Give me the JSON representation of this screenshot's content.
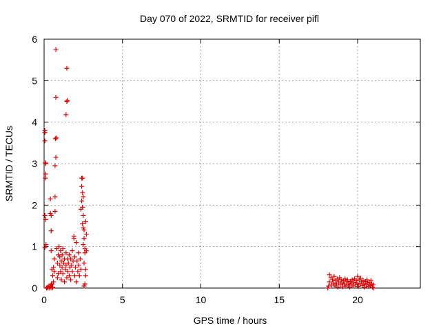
{
  "chart_data": {
    "type": "scatter",
    "title": "Day 070 of 2022, SRMTID for receiver pifl",
    "xlabel": "GPS time / hours",
    "ylabel": "SRMTID / TECUs",
    "xlim": [
      0,
      24
    ],
    "ylim": [
      0,
      6
    ],
    "xticks": [
      0,
      5,
      10,
      15,
      20
    ],
    "yticks": [
      0,
      1,
      2,
      3,
      4,
      5,
      6
    ],
    "grid": true,
    "marker": "plus",
    "color": "#e00000",
    "series": [
      {
        "points": [
          [
            0.05,
            3.8
          ],
          [
            0.05,
            3.75
          ],
          [
            0.05,
            3.55
          ],
          [
            0.1,
            3.0
          ],
          [
            0.08,
            3.02
          ],
          [
            0.1,
            2.75
          ],
          [
            0.08,
            2.65
          ],
          [
            0.05,
            1.75
          ],
          [
            0.1,
            1.65
          ],
          [
            0.12,
            1.05
          ],
          [
            0.05,
            0.98
          ],
          [
            0.15,
            0.0
          ],
          [
            0.2,
            0.02
          ],
          [
            0.25,
            0.0
          ],
          [
            0.3,
            0.05
          ],
          [
            0.35,
            0.0
          ],
          [
            0.4,
            0.03
          ],
          [
            0.45,
            0.08
          ],
          [
            0.5,
            0.0
          ],
          [
            0.5,
            0.1
          ],
          [
            0.55,
            0.02
          ],
          [
            0.4,
            2.15
          ],
          [
            0.4,
            1.8
          ],
          [
            0.45,
            1.75
          ],
          [
            0.45,
            1.38
          ],
          [
            0.45,
            0.9
          ],
          [
            0.5,
            0.45
          ],
          [
            0.55,
            0.3
          ],
          [
            0.6,
            0.15
          ],
          [
            0.6,
            0.5
          ],
          [
            0.65,
            0.7
          ],
          [
            0.65,
            0.4
          ],
          [
            0.7,
            1.85
          ],
          [
            0.7,
            2.95
          ],
          [
            0.7,
            2.2
          ],
          [
            0.75,
            5.75
          ],
          [
            0.75,
            4.6
          ],
          [
            0.72,
            3.6
          ],
          [
            0.78,
            3.62
          ],
          [
            0.75,
            3.15
          ],
          [
            0.8,
            0.95
          ],
          [
            0.85,
            0.6
          ],
          [
            0.85,
            0.25
          ],
          [
            0.9,
            0.35
          ],
          [
            0.9,
            0.8
          ],
          [
            0.95,
            1.0
          ],
          [
            1.0,
            0.55
          ],
          [
            1.0,
            0.75
          ],
          [
            1.05,
            0.4
          ],
          [
            1.05,
            0.9
          ],
          [
            1.1,
            0.65
          ],
          [
            1.1,
            0.2
          ],
          [
            1.15,
            0.5
          ],
          [
            1.15,
            0.8
          ],
          [
            1.2,
            0.95
          ],
          [
            1.2,
            0.35
          ],
          [
            1.25,
            0.6
          ],
          [
            1.3,
            0.7
          ],
          [
            1.3,
            0.15
          ],
          [
            1.35,
            0.45
          ],
          [
            1.4,
            0.85
          ],
          [
            1.4,
            0.55
          ],
          [
            1.45,
            0.25
          ],
          [
            1.45,
            5.3
          ],
          [
            1.45,
            4.5
          ],
          [
            1.48,
            4.52
          ],
          [
            1.4,
            4.18
          ],
          [
            1.5,
            0.7
          ],
          [
            1.5,
            0.4
          ],
          [
            1.55,
            0.6
          ],
          [
            1.6,
            0.8
          ],
          [
            1.6,
            0.3
          ],
          [
            1.65,
            0.5
          ],
          [
            1.7,
            0.7
          ],
          [
            1.7,
            0.2
          ],
          [
            1.75,
            0.55
          ],
          [
            1.8,
            0.9
          ],
          [
            1.8,
            0.4
          ],
          [
            1.85,
            0.65
          ],
          [
            1.9,
            1.2
          ],
          [
            1.9,
            1.25
          ],
          [
            1.95,
            0.75
          ],
          [
            1.95,
            0.3
          ],
          [
            2.0,
            0.5
          ],
          [
            2.05,
            1.1
          ],
          [
            2.05,
            0.15
          ],
          [
            2.1,
            0.65
          ],
          [
            2.15,
            0.4
          ],
          [
            2.2,
            0.85
          ],
          [
            2.2,
            0.55
          ],
          [
            2.25,
            0.3
          ],
          [
            2.3,
            0.7
          ],
          [
            2.35,
            1.9
          ],
          [
            2.35,
            0.45
          ],
          [
            2.4,
            2.65
          ],
          [
            2.45,
            2.65
          ],
          [
            2.4,
            2.45
          ],
          [
            2.45,
            2.3
          ],
          [
            2.4,
            2.1
          ],
          [
            2.5,
            2.2
          ],
          [
            2.45,
            1.95
          ],
          [
            2.5,
            1.75
          ],
          [
            2.45,
            1.55
          ],
          [
            2.5,
            1.45
          ],
          [
            2.55,
            1.4
          ],
          [
            2.55,
            1.2
          ],
          [
            2.5,
            1.05
          ],
          [
            2.6,
            0.95
          ],
          [
            2.6,
            0.85
          ],
          [
            2.55,
            0.6
          ],
          [
            2.65,
            0.3
          ],
          [
            2.6,
            0.1
          ],
          [
            2.55,
            0.05
          ],
          [
            2.65,
            1.6
          ],
          [
            2.7,
            0.9
          ],
          [
            2.65,
            0.45
          ],
          [
            2.7,
            1.3
          ],
          [
            18.1,
            0.0
          ],
          [
            18.15,
            0.05
          ],
          [
            18.2,
            0.32
          ],
          [
            18.2,
            0.15
          ],
          [
            18.3,
            0.25
          ],
          [
            18.35,
            0.08
          ],
          [
            18.4,
            0.2
          ],
          [
            18.45,
            0.12
          ],
          [
            18.5,
            0.28
          ],
          [
            18.55,
            0.05
          ],
          [
            18.6,
            0.18
          ],
          [
            18.65,
            0.1
          ],
          [
            18.7,
            0.22
          ],
          [
            18.75,
            0.02
          ],
          [
            18.8,
            0.15
          ],
          [
            18.85,
            0.25
          ],
          [
            18.9,
            0.08
          ],
          [
            18.95,
            0.2
          ],
          [
            19.0,
            0.12
          ],
          [
            19.05,
            0.03
          ],
          [
            19.1,
            0.18
          ],
          [
            19.15,
            0.1
          ],
          [
            19.2,
            0.22
          ],
          [
            19.25,
            0.05
          ],
          [
            19.3,
            0.15
          ],
          [
            19.35,
            0.2
          ],
          [
            19.4,
            0.08
          ],
          [
            19.45,
            0.12
          ],
          [
            19.5,
            0.02
          ],
          [
            19.55,
            0.16
          ],
          [
            19.6,
            0.1
          ],
          [
            19.65,
            0.2
          ],
          [
            19.7,
            0.05
          ],
          [
            19.75,
            0.14
          ],
          [
            19.8,
            0.22
          ],
          [
            19.85,
            0.08
          ],
          [
            19.9,
            0.18
          ],
          [
            19.95,
            0.12
          ],
          [
            20.0,
            0.28
          ],
          [
            20.05,
            0.04
          ],
          [
            20.1,
            0.2
          ],
          [
            20.15,
            0.1
          ],
          [
            20.2,
            0.24
          ],
          [
            20.25,
            0.15
          ],
          [
            20.3,
            0.06
          ],
          [
            20.35,
            0.18
          ],
          [
            20.4,
            0.1
          ],
          [
            20.45,
            0.02
          ],
          [
            20.5,
            0.16
          ],
          [
            20.55,
            0.08
          ],
          [
            20.6,
            0.2
          ],
          [
            20.65,
            0.12
          ],
          [
            20.7,
            0.04
          ],
          [
            20.75,
            0.14
          ],
          [
            20.8,
            0.06
          ],
          [
            20.85,
            0.18
          ],
          [
            20.9,
            0.1
          ],
          [
            20.95,
            0.02
          ],
          [
            21.0,
            0.08
          ],
          [
            21.0,
            0.0
          ]
        ]
      }
    ]
  }
}
